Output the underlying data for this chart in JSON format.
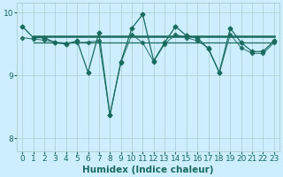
{
  "xlabel": "Humidex (Indice chaleur)",
  "bg_color": "#cceeff",
  "line_color": "#1a6b5e",
  "grid_color": "#aacccc",
  "xlim": [
    -0.5,
    23.5
  ],
  "ylim": [
    7.8,
    10.15
  ],
  "yticks": [
    8,
    9,
    10
  ],
  "xticks": [
    0,
    1,
    2,
    3,
    4,
    5,
    6,
    7,
    8,
    9,
    10,
    11,
    12,
    13,
    14,
    15,
    16,
    17,
    18,
    19,
    20,
    21,
    22,
    23
  ],
  "font_color": "#1a6b5e",
  "tick_fontsize": 6.5,
  "label_fontsize": 7.5,
  "volatile_x": [
    0,
    1,
    2,
    3,
    4,
    5,
    6,
    7,
    8,
    9,
    10,
    11,
    12,
    13,
    14,
    15,
    16,
    17,
    18,
    19,
    20,
    21,
    22,
    23
  ],
  "volatile_y": [
    9.78,
    9.6,
    9.6,
    9.52,
    9.5,
    9.55,
    9.05,
    9.68,
    8.37,
    9.22,
    9.75,
    9.97,
    9.23,
    9.52,
    9.78,
    9.63,
    9.6,
    9.42,
    9.05,
    9.75,
    9.52,
    9.38,
    9.38,
    9.55
  ],
  "smooth_x": [
    0,
    1,
    2,
    3,
    4,
    5,
    6,
    7,
    8,
    9,
    10,
    11,
    12,
    13,
    14,
    15,
    16,
    17,
    18,
    19,
    20,
    21,
    22,
    23
  ],
  "smooth_y": [
    9.6,
    9.58,
    9.56,
    9.53,
    9.51,
    9.52,
    9.53,
    9.55,
    8.37,
    9.2,
    9.65,
    9.52,
    9.22,
    9.5,
    9.65,
    9.6,
    9.55,
    9.44,
    9.04,
    9.65,
    9.44,
    9.35,
    9.35,
    9.52
  ],
  "hline1_xstart": 1,
  "hline1_xend": 23,
  "hline1_y": 9.625,
  "hline2_xstart": 1,
  "hline2_xend": 23,
  "hline2_y": 9.525
}
